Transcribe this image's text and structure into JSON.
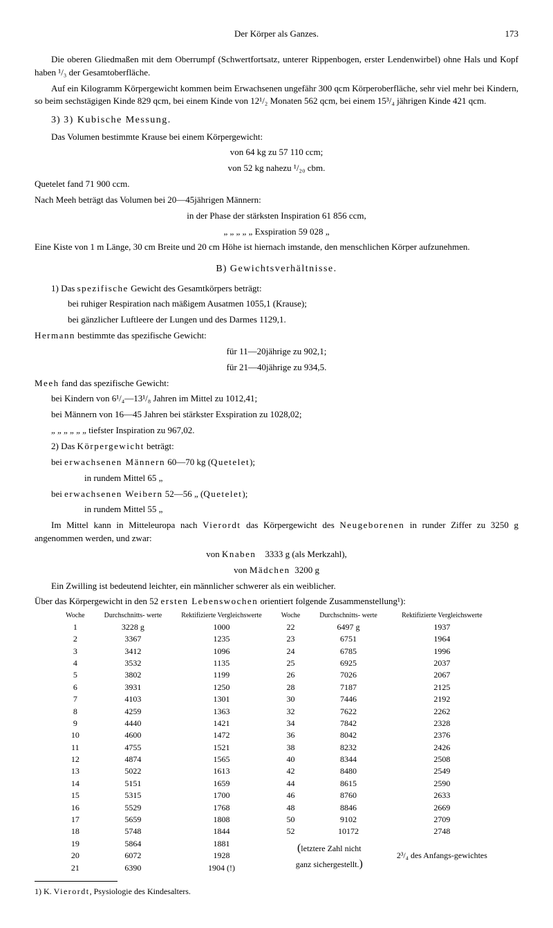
{
  "header": {
    "title": "Der Körper als Ganzes.",
    "page": "173"
  },
  "para1": "Die oberen Gliedmaßen mit dem Oberrumpf (Schwertfortsatz, unterer Rippenbogen, erster Lendenwirbel) ohne Hals und Kopf haben ¹/₃ der Gesamtoberfläche.",
  "para2": "Auf ein Kilogramm Körpergewicht kommen beim Erwachsenen ungefähr 300 qcm Körperoberfläche, sehr viel mehr bei Kindern, so beim sechstägigen Kinde 829 qcm, bei einem Kinde von 12¹/₂ Monaten 562 qcm, bei einem 15³/₄ jährigen Kinde 421 qcm.",
  "sec3_title": "3) Kubische Messung.",
  "sec3_l1": "Das Volumen bestimmte Krause bei einem Körpergewicht:",
  "sec3_l2": "von 64 kg zu 57 110 ccm;",
  "sec3_l3": "von 52 kg nahezu ¹/₂₀ cbm.",
  "sec3_l4": "Quetelet fand 71 900 ccm.",
  "sec3_l5": "Nach Meeh beträgt das Volumen bei 20—45jährigen Männern:",
  "sec3_l6": "in der Phase der stärksten Inspiration  61 856 ccm,",
  "sec3_l7": "„      „      „      „      „         Exspiration  59 028   „",
  "sec3_l8": "Eine Kiste von 1 m Länge, 30 cm Breite und 20 cm Höhe ist hiernach imstande, den menschlichen Körper aufzunehmen.",
  "secB_title": "B) Gewichtsverhältnisse.",
  "b1_l1": "1) Das spezifische Gewicht des Gesamtkörpers beträgt:",
  "b1_l2": "bei ruhiger Respiration nach mäßigem Ausatmen 1055,1 (Krause);",
  "b1_l3": "bei gänzlicher Luftleere der Lungen und des Darmes 1129,1.",
  "b1_l4": "Hermann bestimmte das spezifische Gewicht:",
  "b1_l5": "für 11—20jährige zu 902,1;",
  "b1_l6": "für 21—40jährige zu 934,5.",
  "b1_l7": "Meeh fand das spezifische Gewicht:",
  "b1_l8": "bei Kindern von 6¹/₄—13¹/₈ Jahren im Mittel zu            1012,41;",
  "b1_l9": "bei Männern von 16—45 Jahren bei stärkster Exspiration zu 1028,02;",
  "b1_l10": "„       „       „     „      „    „  tiefster  Inspiration  zu     967,02.",
  "b2_l1": "2) Das Körpergewicht beträgt:",
  "b2_l2": "bei erwachsenen Männern 60—70 kg (Quetelet);",
  "b2_l3": "in rundem Mittel             65  „",
  "b2_l4": "bei erwachsenen Weibern 52—56  „  (Quetelet);",
  "b2_l5": "in rundem Mittel             55  „",
  "b2_l6": "Im Mittel kann in Mitteleuropa nach Vierordt das Körpergewicht des Neugeborenen in runder Ziffer zu 3250 g angenommen werden, und zwar:",
  "b2_l7": "von Knaben    3333 g (als Merkzahl),",
  "b2_l8": "von Mädchen  3200 g",
  "b2_l9": "Ein Zwilling ist bedeutend leichter, ein männlicher schwerer als ein weiblicher.",
  "b2_l10": "Über das Körpergewicht in den 52 ersten Lebenswochen orientiert folgende Zusammenstellung¹):",
  "table": {
    "headers": [
      "Woche",
      "Durchschnitts-\nwerte",
      "Rektifizierte\nVergleichswerte",
      "Woche",
      "Durchschnitts-\nwerte",
      "Rektifizierte\nVergleichswerte"
    ],
    "rows": [
      [
        "1",
        "3228 g",
        "1000",
        "22",
        "6497 g",
        "1937"
      ],
      [
        "2",
        "3367",
        "1235",
        "23",
        "6751",
        "1964"
      ],
      [
        "3",
        "3412",
        "1096",
        "24",
        "6785",
        "1996"
      ],
      [
        "4",
        "3532",
        "1135",
        "25",
        "6925",
        "2037"
      ],
      [
        "5",
        "3802",
        "1199",
        "26",
        "7026",
        "2067"
      ],
      [
        "6",
        "3931",
        "1250",
        "28",
        "7187",
        "2125"
      ],
      [
        "7",
        "4103",
        "1301",
        "30",
        "7446",
        "2192"
      ],
      [
        "8",
        "4259",
        "1363",
        "32",
        "7622",
        "2262"
      ],
      [
        "9",
        "4440",
        "1421",
        "34",
        "7842",
        "2328"
      ],
      [
        "10",
        "4600",
        "1472",
        "36",
        "8042",
        "2376"
      ],
      [
        "11",
        "4755",
        "1521",
        "38",
        "8232",
        "2426"
      ],
      [
        "12",
        "4874",
        "1565",
        "40",
        "8344",
        "2508"
      ],
      [
        "13",
        "5022",
        "1613",
        "42",
        "8480",
        "2549"
      ],
      [
        "14",
        "5151",
        "1659",
        "44",
        "8615",
        "2590"
      ],
      [
        "15",
        "5315",
        "1700",
        "46",
        "8760",
        "2633"
      ],
      [
        "16",
        "5529",
        "1768",
        "48",
        "8846",
        "2669"
      ],
      [
        "17",
        "5659",
        "1808",
        "50",
        "9102",
        "2709"
      ],
      [
        "18",
        "5748",
        "1844",
        "52",
        "10172",
        "2748"
      ]
    ],
    "row19": [
      "19",
      "5864",
      "1881"
    ],
    "row20": [
      "20",
      "6072",
      "1928"
    ],
    "row21": [
      "21",
      "6390",
      "1904 (!)"
    ],
    "note": "letztere Zahl nicht ganz sichergestellt.",
    "note2": "2³/₄ des Anfangs-gewichtes"
  },
  "footnote": "1) K. Vierordt, Psysiologie des Kindesalters."
}
